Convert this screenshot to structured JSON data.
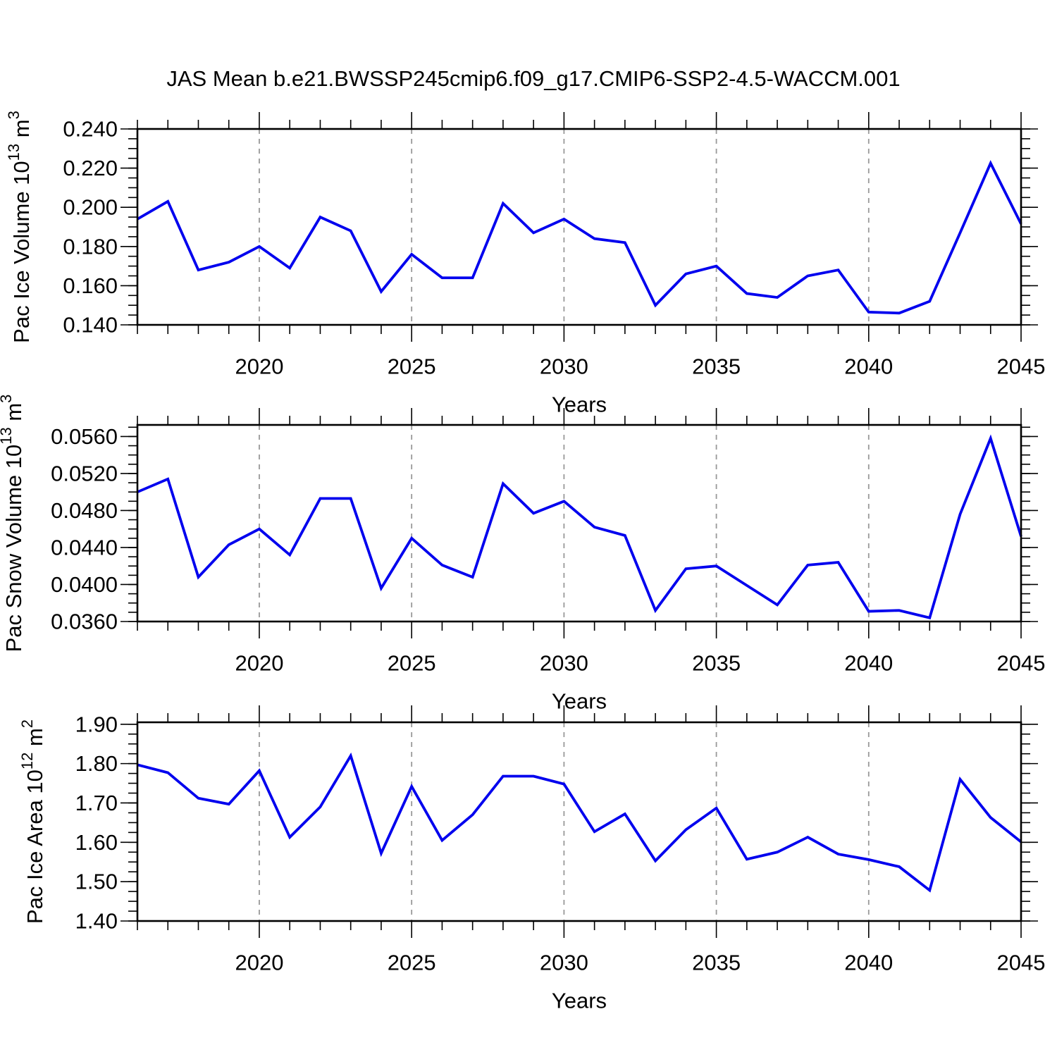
{
  "title": "JAS Mean b.e21.BWSSP245cmip6.f09_g17.CMIP6-SSP2-4.5-WACCM.001",
  "colors": {
    "line": "#0000EE",
    "grid": "#999999",
    "axis": "#000000",
    "background": "#FFFFFF"
  },
  "x_axis": {
    "label": "Years",
    "range": [
      2016,
      2045
    ],
    "major_tick_labels": [
      "2020",
      "2025",
      "2030",
      "2035",
      "2040",
      "2045"
    ],
    "minor_tick_step_years": 1
  },
  "years": [
    2016,
    2017,
    2018,
    2019,
    2020,
    2021,
    2022,
    2023,
    2024,
    2025,
    2026,
    2027,
    2028,
    2029,
    2030,
    2031,
    2032,
    2033,
    2034,
    2035,
    2036,
    2037,
    2038,
    2039,
    2040,
    2041,
    2042,
    2043,
    2044,
    2045
  ],
  "chart_data": [
    {
      "type": "line",
      "name": "pac-ice-volume",
      "ylabel_segments": [
        {
          "t": "Pac Ice Volume 10"
        },
        {
          "t": "13",
          "sup": true
        },
        {
          "t": " m"
        },
        {
          "t": "3",
          "sup": true
        }
      ],
      "y_tick_labels": [
        "0.240",
        "0.220",
        "0.200",
        "0.180",
        "0.160",
        "0.140"
      ],
      "ylim": [
        0.14,
        0.24
      ],
      "y_minor_step": 0.005,
      "grid_vertical_dashed": true,
      "legend": "none",
      "values": [
        0.194,
        0.203,
        0.168,
        0.172,
        0.18,
        0.169,
        0.195,
        0.188,
        0.157,
        0.176,
        0.164,
        0.164,
        0.202,
        0.187,
        0.194,
        0.184,
        0.182,
        0.15,
        0.166,
        0.17,
        0.156,
        0.154,
        0.165,
        0.168,
        0.1465,
        0.146,
        0.152,
        0.187,
        0.2225,
        0.1915
      ]
    },
    {
      "type": "line",
      "name": "pac-snow-volume",
      "ylabel_segments": [
        {
          "t": "Pac Snow Volume 10"
        },
        {
          "t": "13",
          "sup": true
        },
        {
          "t": " m"
        },
        {
          "t": "3",
          "sup": true
        }
      ],
      "y_tick_labels": [
        "0.0560",
        "0.0520",
        "0.0480",
        "0.0440",
        "0.0400",
        "0.0360"
      ],
      "ylim": [
        0.036,
        0.05725
      ],
      "y_minor_step": 0.001,
      "grid_vertical_dashed": true,
      "legend": "none",
      "values": [
        0.05,
        0.0514,
        0.0408,
        0.0443,
        0.046,
        0.0432,
        0.0493,
        0.0493,
        0.0396,
        0.045,
        0.0421,
        0.0408,
        0.0509,
        0.0477,
        0.049,
        0.0462,
        0.0453,
        0.0372,
        0.0417,
        0.042,
        0.0399,
        0.0378,
        0.0421,
        0.0424,
        0.0371,
        0.0372,
        0.0364,
        0.0476,
        0.0558,
        0.0452
      ]
    },
    {
      "type": "line",
      "name": "pac-ice-area",
      "ylabel_segments": [
        {
          "t": "Pac Ice Area 10"
        },
        {
          "t": "12",
          "sup": true
        },
        {
          "t": " m"
        },
        {
          "t": "2",
          "sup": true
        }
      ],
      "y_tick_labels": [
        "1.90",
        "1.80",
        "1.70",
        "1.60",
        "1.50",
        "1.40"
      ],
      "ylim": [
        1.4,
        1.905
      ],
      "y_minor_step": 0.025,
      "grid_vertical_dashed": true,
      "legend": "none",
      "values": [
        1.797,
        1.777,
        1.712,
        1.697,
        1.782,
        1.613,
        1.69,
        1.82,
        1.572,
        1.742,
        1.605,
        1.67,
        1.768,
        1.768,
        1.748,
        1.627,
        1.672,
        1.553,
        1.632,
        1.687,
        1.557,
        1.575,
        1.613,
        1.57,
        1.556,
        1.538,
        1.478,
        1.76,
        1.663,
        1.601
      ]
    }
  ]
}
